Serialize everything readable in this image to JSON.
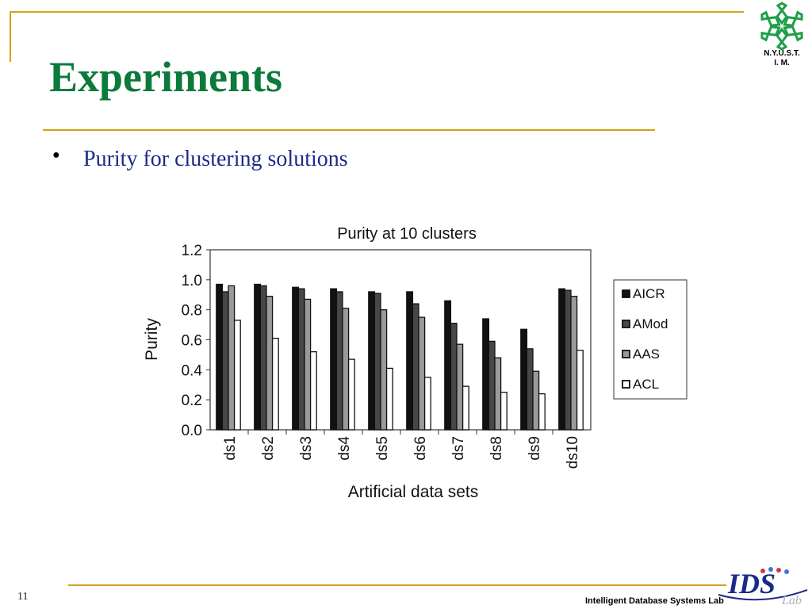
{
  "slide": {
    "title": "Experiments",
    "bullet": "Purity for clustering solutions",
    "page_number": "11",
    "footer_lab": "Intelligent Database Systems Lab",
    "logo_text_line1": "N.Y.U.S.T.",
    "logo_text_line2": "I. M.",
    "ids_logo_text": "IDS",
    "ids_logo_small": "Lab",
    "title_color": "#0b7a3a",
    "bullet_color": "#1a2a8a",
    "rule_color": "#d4a017"
  },
  "chart_data": {
    "type": "bar",
    "title": "Purity at 10 clusters",
    "xlabel": "Artificial data sets",
    "ylabel": "Purity",
    "ylim": [
      0,
      1.2
    ],
    "yticks": [
      "0.0",
      "0.2",
      "0.4",
      "0.6",
      "0.8",
      "1.0",
      "1.2"
    ],
    "grid": false,
    "legend_position": "right",
    "categories": [
      "ds1",
      "ds2",
      "ds3",
      "ds4",
      "ds5",
      "ds6",
      "ds7",
      "ds8",
      "ds9",
      "ds10"
    ],
    "series": [
      {
        "name": "AICR",
        "color": "#111111",
        "values": [
          0.97,
          0.97,
          0.95,
          0.94,
          0.92,
          0.92,
          0.86,
          0.74,
          0.67,
          0.94
        ]
      },
      {
        "name": "AMod",
        "color": "#474747",
        "values": [
          0.92,
          0.96,
          0.94,
          0.92,
          0.91,
          0.84,
          0.71,
          0.59,
          0.54,
          0.93
        ]
      },
      {
        "name": "AAS",
        "color": "#9a9a9a",
        "values": [
          0.96,
          0.89,
          0.87,
          0.81,
          0.8,
          0.75,
          0.57,
          0.48,
          0.39,
          0.89
        ]
      },
      {
        "name": "ACL",
        "color": "#ffffff",
        "values": [
          0.73,
          0.61,
          0.52,
          0.47,
          0.41,
          0.35,
          0.29,
          0.25,
          0.24,
          0.53
        ]
      }
    ]
  }
}
